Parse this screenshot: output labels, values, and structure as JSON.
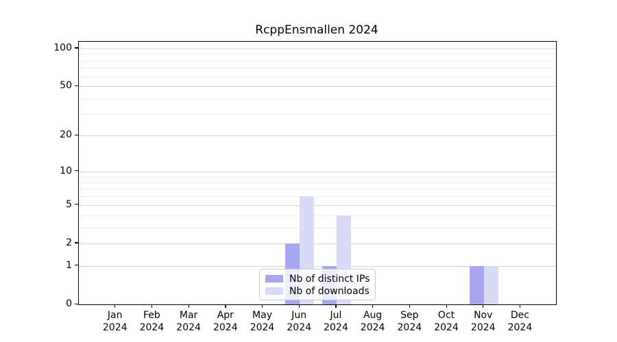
{
  "chart_data": {
    "type": "bar",
    "title": "RcppEnsmallen 2024",
    "categories": [
      "Jan",
      "Feb",
      "Mar",
      "Apr",
      "May",
      "Jun",
      "Jul",
      "Aug",
      "Sep",
      "Oct",
      "Nov",
      "Dec"
    ],
    "x_year_label": "2024",
    "series": [
      {
        "name": "Nb of distinct IPs",
        "color": "#a7a7ef",
        "values": [
          0,
          0,
          0,
          0,
          0,
          2,
          1,
          0,
          0,
          0,
          1,
          0
        ]
      },
      {
        "name": "Nb of downloads",
        "color": "#d9d9f8",
        "values": [
          0,
          0,
          0,
          0,
          0,
          6,
          4,
          0,
          0,
          0,
          1,
          0
        ]
      }
    ],
    "yscale": "log1p",
    "ylim": [
      0,
      113
    ],
    "yticks": [
      0,
      1,
      2,
      5,
      10,
      20,
      50,
      100
    ],
    "minor_yticks": [
      3,
      4,
      6,
      7,
      8,
      9,
      30,
      40,
      60,
      70,
      80,
      90
    ],
    "grid": true,
    "legend_position": "inside bottom-center"
  },
  "colors": {
    "major_grid": "#d2d2d2",
    "minor_grid": "#ededed",
    "axis": "#000000",
    "legend_border": "#cccccc",
    "text": "#000000"
  }
}
